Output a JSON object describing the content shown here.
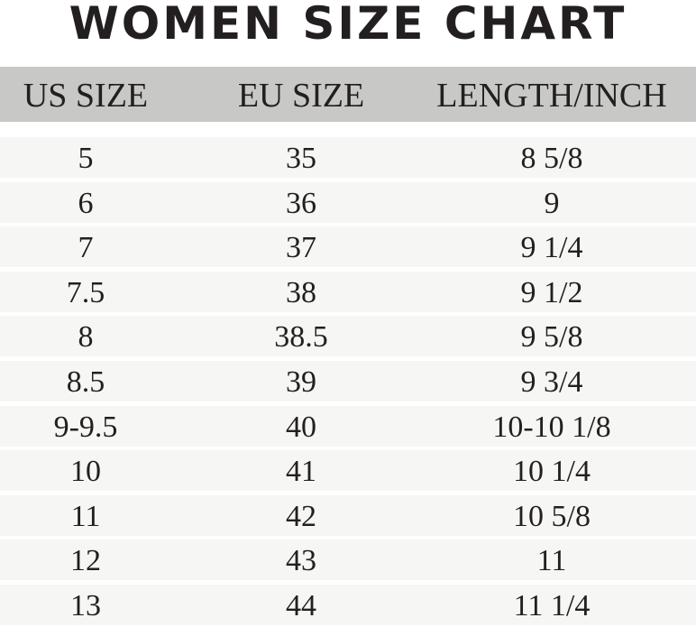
{
  "chart_data": {
    "type": "table",
    "title": "WOMEN SIZE CHART",
    "columns": [
      "US SIZE",
      "EU SIZE",
      "LENGTH/INCH"
    ],
    "rows": [
      [
        "5",
        "35",
        "8 5/8"
      ],
      [
        "6",
        "36",
        "9"
      ],
      [
        "7",
        "37",
        "9 1/4"
      ],
      [
        "7.5",
        "38",
        "9 1/2"
      ],
      [
        "8",
        "38.5",
        "9 5/8"
      ],
      [
        "8.5",
        "39",
        "9 3/4"
      ],
      [
        "9-9.5",
        "40",
        "10-10 1/8"
      ],
      [
        "10",
        "41",
        "10 1/4"
      ],
      [
        "11",
        "42",
        "10 5/8"
      ],
      [
        "12",
        "43",
        "11"
      ],
      [
        "13",
        "44",
        "11 1/4"
      ]
    ],
    "colors": {
      "header_bg": "#c8c8c6",
      "row_bg": "#f6f6f4",
      "text": "#231f20"
    }
  }
}
